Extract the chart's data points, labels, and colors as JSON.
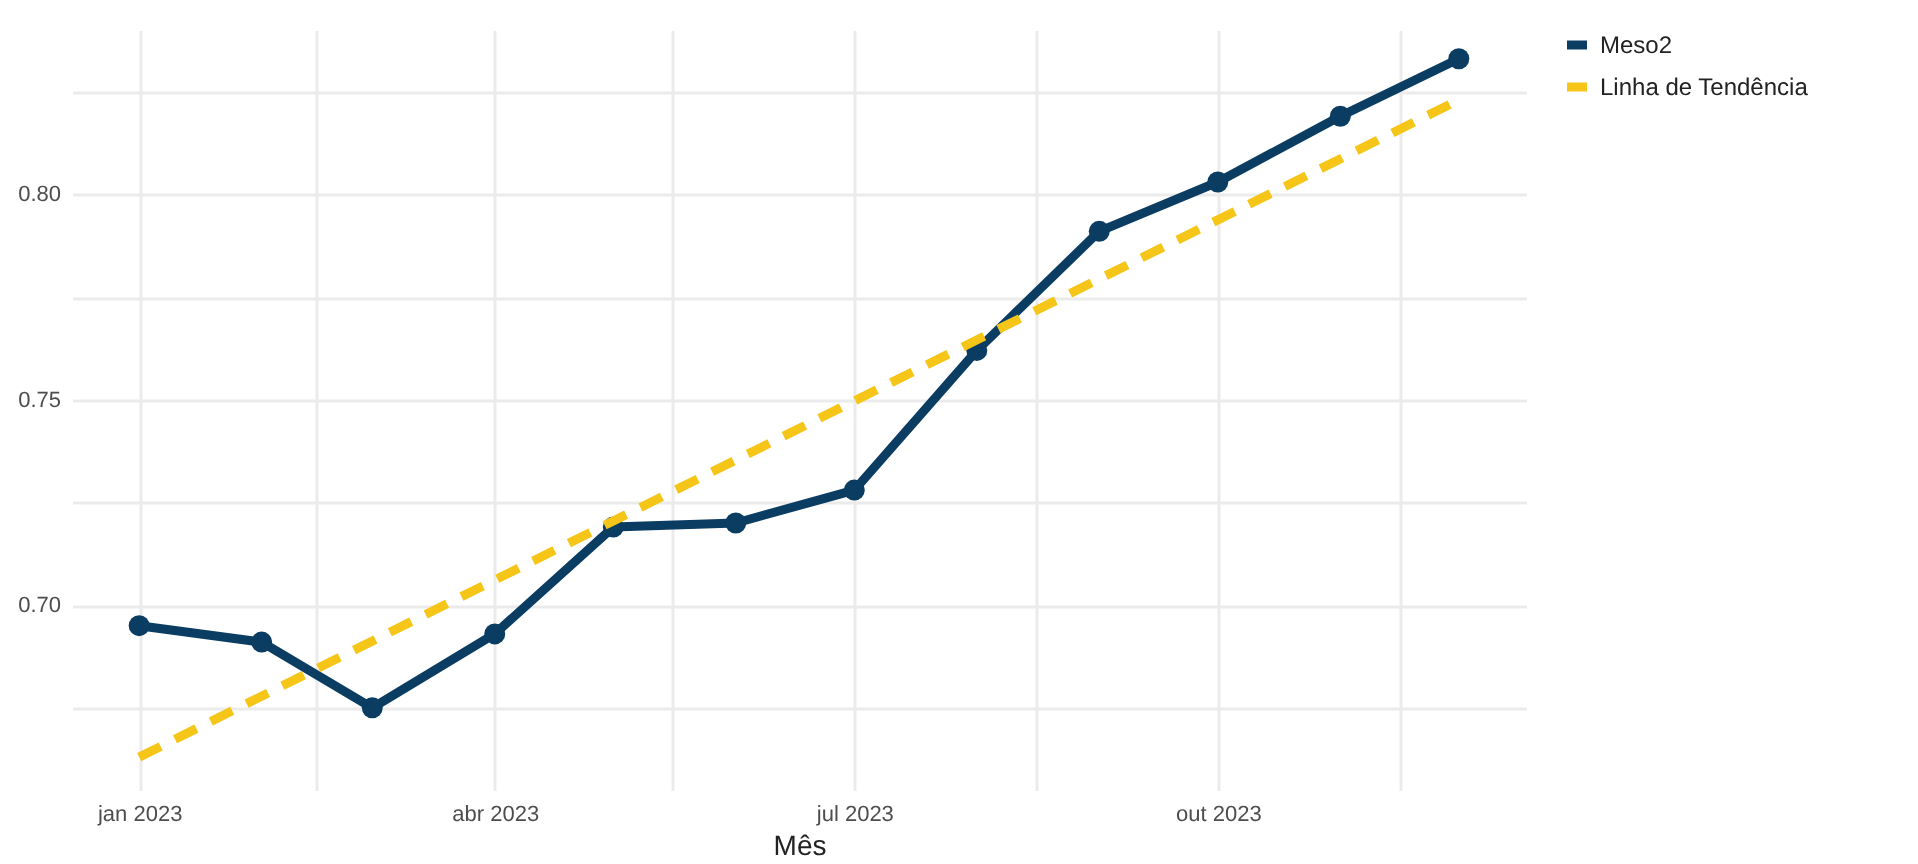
{
  "chart_data": {
    "type": "line",
    "xlabel": "Mês",
    "x": [
      "2023-01-01",
      "2023-02-01",
      "2023-03-01",
      "2023-04-01",
      "2023-05-01",
      "2023-06-01",
      "2023-07-01",
      "2023-08-01",
      "2023-09-01",
      "2023-10-01",
      "2023-11-01",
      "2023-12-01"
    ],
    "series": [
      {
        "name": "Meso2",
        "color": "#0b3d63",
        "marker": "circle",
        "line_style": "solid",
        "values": [
          0.695,
          0.691,
          0.675,
          0.693,
          0.719,
          0.72,
          0.728,
          0.762,
          0.791,
          0.803,
          0.819,
          0.833
        ]
      },
      {
        "name": "Linha de Tendência",
        "type": "line",
        "color": "#f5c518",
        "marker": "none",
        "line_style": "dashed",
        "x": [
          "2023-01-01",
          "2023-12-01"
        ],
        "values": [
          0.663,
          0.823
        ]
      }
    ],
    "xlim": [
      "2022-12-15",
      "2023-12-18"
    ],
    "ylim": [
      0.655,
      0.84
    ],
    "xticks": [
      {
        "value": "2023-01-01",
        "label": "jan 2023"
      },
      {
        "value": "2023-02-15",
        "label": null
      },
      {
        "value": "2023-04-01",
        "label": "abr 2023"
      },
      {
        "value": "2023-05-16",
        "label": null
      },
      {
        "value": "2023-07-01",
        "label": "jul 2023"
      },
      {
        "value": "2023-08-16",
        "label": null
      },
      {
        "value": "2023-10-01",
        "label": "out 2023"
      },
      {
        "value": "2023-11-16",
        "label": null
      }
    ],
    "yticks": [
      {
        "value": 0.675,
        "label": null
      },
      {
        "value": 0.7,
        "label": "0.70"
      },
      {
        "value": 0.725,
        "label": null
      },
      {
        "value": 0.75,
        "label": "0.75"
      },
      {
        "value": 0.775,
        "label": null
      },
      {
        "value": 0.8,
        "label": "0.80"
      },
      {
        "value": 0.825,
        "label": null
      }
    ],
    "grid": true,
    "legend": "right"
  }
}
